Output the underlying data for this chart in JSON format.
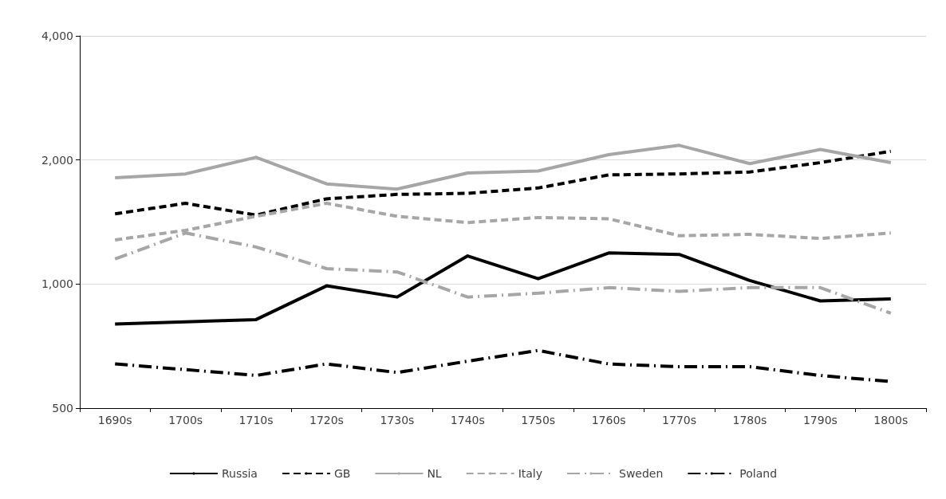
{
  "chart_data": {
    "type": "line",
    "categories": [
      "1690s",
      "1700s",
      "1710s",
      "1720s",
      "1730s",
      "1740s",
      "1750s",
      "1760s",
      "1770s",
      "1780s",
      "1790s",
      "1800s"
    ],
    "series": [
      {
        "name": "Russia",
        "color": "#000000",
        "line_style": "solid",
        "values": [
          800,
          810,
          820,
          990,
          930,
          1170,
          1030,
          1190,
          1180,
          1020,
          910,
          920
        ]
      },
      {
        "name": "GB",
        "color": "#000000",
        "line_style": "dashed",
        "values": [
          1480,
          1570,
          1470,
          1610,
          1650,
          1660,
          1710,
          1840,
          1850,
          1870,
          1970,
          2100
        ]
      },
      {
        "name": "NL",
        "color": "#a6a6a6",
        "line_style": "solid",
        "values": [
          1810,
          1850,
          2030,
          1750,
          1700,
          1860,
          1880,
          2060,
          2170,
          1960,
          2120,
          1970
        ]
      },
      {
        "name": "Italy",
        "color": "#a6a6a6",
        "line_style": "dashed",
        "values": [
          1280,
          1350,
          1460,
          1570,
          1460,
          1410,
          1450,
          1440,
          1310,
          1320,
          1290,
          1330
        ]
      },
      {
        "name": "Sweden",
        "color": "#a6a6a6",
        "line_style": "dashdot",
        "values": [
          1150,
          1330,
          1230,
          1090,
          1070,
          930,
          950,
          980,
          960,
          980,
          980,
          850
        ]
      },
      {
        "name": "Poland",
        "color": "#000000",
        "line_style": "dashdot",
        "values": [
          640,
          620,
          600,
          640,
          610,
          650,
          690,
          640,
          630,
          630,
          600,
          580
        ]
      }
    ],
    "log": "y",
    "ylim": [
      500,
      4000
    ],
    "yticks": [
      {
        "value": 500,
        "label": "500"
      },
      {
        "value": 1000,
        "label": "1,000"
      },
      {
        "value": 2000,
        "label": "2,000"
      },
      {
        "value": 4000,
        "label": "4,000"
      }
    ],
    "grid": "y",
    "legend": "bottom",
    "marker": "none"
  }
}
